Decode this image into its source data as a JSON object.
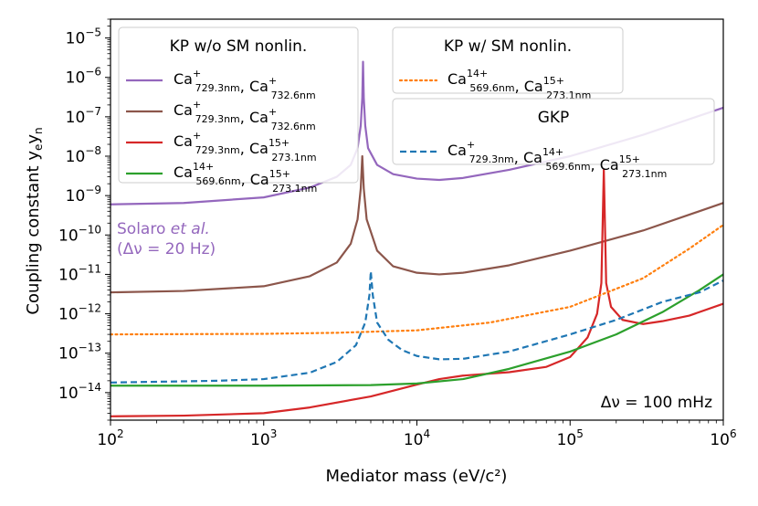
{
  "chart_data": {
    "type": "line",
    "xscale": "log",
    "yscale": "log",
    "xlim": [
      100,
      1000000
    ],
    "ylim": [
      2e-15,
      3e-05
    ],
    "xlabel": "Mediator mass (eV/c²)",
    "ylabel": "Coupling constant yₑyₙ",
    "xticks": [
      {
        "exp": 2,
        "base": "10",
        "sup": "2"
      },
      {
        "exp": 3,
        "base": "10",
        "sup": "3"
      },
      {
        "exp": 4,
        "base": "10",
        "sup": "4"
      },
      {
        "exp": 5,
        "base": "10",
        "sup": "5"
      },
      {
        "exp": 6,
        "base": "10",
        "sup": "6"
      }
    ],
    "yticks": [
      {
        "exp": -5,
        "base": "10",
        "sup": "−5"
      },
      {
        "exp": -6,
        "base": "10",
        "sup": "−6"
      },
      {
        "exp": -7,
        "base": "10",
        "sup": "−7"
      },
      {
        "exp": -8,
        "base": "10",
        "sup": "−8"
      },
      {
        "exp": -9,
        "base": "10",
        "sup": "−9"
      },
      {
        "exp": -10,
        "base": "10",
        "sup": "−10"
      },
      {
        "exp": -11,
        "base": "10",
        "sup": "−11"
      },
      {
        "exp": -12,
        "base": "10",
        "sup": "−12"
      },
      {
        "exp": -13,
        "base": "10",
        "sup": "−13"
      },
      {
        "exp": -14,
        "base": "10",
        "sup": "−14"
      }
    ],
    "series": [
      {
        "name": "purple",
        "color": "#9467bd",
        "dash": "solid",
        "points": [
          [
            100,
            6e-10
          ],
          [
            300,
            6.5e-10
          ],
          [
            1000,
            9e-10
          ],
          [
            2000,
            1.6e-09
          ],
          [
            3000,
            3e-09
          ],
          [
            3700,
            6e-09
          ],
          [
            4100,
            1.6e-08
          ],
          [
            4300,
            6e-08
          ],
          [
            4400,
            3e-07
          ],
          [
            4450,
            2.5e-06
          ],
          [
            4500,
            3e-07
          ],
          [
            4600,
            6e-08
          ],
          [
            4800,
            1.6e-08
          ],
          [
            5500,
            6e-09
          ],
          [
            7000,
            3.5e-09
          ],
          [
            10000,
            2.7e-09
          ],
          [
            14000,
            2.5e-09
          ],
          [
            20000,
            2.8e-09
          ],
          [
            40000,
            4.5e-09
          ],
          [
            100000,
            1e-08
          ],
          [
            300000,
            3.5e-08
          ],
          [
            1000000,
            1.7e-07
          ]
        ]
      },
      {
        "name": "brown",
        "color": "#8c564b",
        "dash": "solid",
        "points": [
          [
            100,
            3.5e-12
          ],
          [
            300,
            3.8e-12
          ],
          [
            1000,
            5e-12
          ],
          [
            2000,
            9e-12
          ],
          [
            3000,
            2e-11
          ],
          [
            3700,
            6e-11
          ],
          [
            4100,
            2.5e-10
          ],
          [
            4300,
            1.5e-09
          ],
          [
            4400,
            1e-08
          ],
          [
            4500,
            1.5e-09
          ],
          [
            4700,
            2.5e-10
          ],
          [
            5500,
            4e-11
          ],
          [
            7000,
            1.6e-11
          ],
          [
            10000,
            1.1e-11
          ],
          [
            14000,
            1e-11
          ],
          [
            20000,
            1.1e-11
          ],
          [
            40000,
            1.7e-11
          ],
          [
            100000,
            4e-11
          ],
          [
            300000,
            1.3e-10
          ],
          [
            1000000,
            6.5e-10
          ]
        ]
      },
      {
        "name": "red",
        "color": "#d62728",
        "dash": "solid",
        "points": [
          [
            100,
            2.5e-15
          ],
          [
            300,
            2.6e-15
          ],
          [
            1000,
            3e-15
          ],
          [
            2000,
            4.2e-15
          ],
          [
            5000,
            8e-15
          ],
          [
            10000,
            1.6e-14
          ],
          [
            14000,
            2.2e-14
          ],
          [
            20000,
            2.7e-14
          ],
          [
            40000,
            3.3e-14
          ],
          [
            70000,
            4.5e-14
          ],
          [
            100000,
            8e-14
          ],
          [
            130000,
            2.5e-13
          ],
          [
            150000,
            1e-12
          ],
          [
            160000,
            6e-12
          ],
          [
            166000,
            4.5e-09
          ],
          [
            172000,
            6e-12
          ],
          [
            185000,
            1.5e-12
          ],
          [
            220000,
            7e-13
          ],
          [
            300000,
            5.5e-13
          ],
          [
            400000,
            6.5e-13
          ],
          [
            600000,
            9e-13
          ],
          [
            1000000,
            1.8e-12
          ]
        ]
      },
      {
        "name": "green",
        "color": "#2ca02c",
        "dash": "solid",
        "points": [
          [
            100,
            1.5e-14
          ],
          [
            1000,
            1.5e-14
          ],
          [
            5000,
            1.55e-14
          ],
          [
            10000,
            1.7e-14
          ],
          [
            20000,
            2.2e-14
          ],
          [
            40000,
            4e-14
          ],
          [
            100000,
            1.1e-13
          ],
          [
            200000,
            3e-13
          ],
          [
            400000,
            1.1e-12
          ],
          [
            700000,
            4e-12
          ],
          [
            1000000,
            1e-11
          ]
        ]
      },
      {
        "name": "orange",
        "color": "#ff7f0e",
        "dash": "dotted",
        "points": [
          [
            100,
            3e-13
          ],
          [
            1000,
            3.1e-13
          ],
          [
            3000,
            3.3e-13
          ],
          [
            10000,
            3.8e-13
          ],
          [
            30000,
            6e-13
          ],
          [
            100000,
            1.5e-12
          ],
          [
            300000,
            8e-12
          ],
          [
            600000,
            4.5e-11
          ],
          [
            1000000,
            1.8e-10
          ]
        ]
      },
      {
        "name": "blue",
        "color": "#1f77b4",
        "dash": "dashed",
        "points": [
          [
            100,
            1.8e-14
          ],
          [
            500,
            2e-14
          ],
          [
            1000,
            2.2e-14
          ],
          [
            2000,
            3.2e-14
          ],
          [
            3000,
            6e-14
          ],
          [
            4000,
            1.6e-13
          ],
          [
            4600,
            6e-13
          ],
          [
            4900,
            3e-12
          ],
          [
            5000,
            1.2e-11
          ],
          [
            5150,
            3e-12
          ],
          [
            5500,
            6e-13
          ],
          [
            6500,
            2.2e-13
          ],
          [
            8000,
            1.2e-13
          ],
          [
            10000,
            8.5e-14
          ],
          [
            14000,
            7e-14
          ],
          [
            20000,
            7.2e-14
          ],
          [
            40000,
            1.1e-13
          ],
          [
            100000,
            3e-13
          ],
          [
            200000,
            7e-13
          ],
          [
            400000,
            2e-12
          ],
          [
            700000,
            3.5e-12
          ],
          [
            1000000,
            7e-12
          ]
        ]
      }
    ],
    "legend_left": {
      "title": "KP w/o SM nonlin.",
      "entries": [
        {
          "color": "#9467bd",
          "dash": "solid",
          "parts": [
            {
              "el": "Ca",
              "sup": "+",
              "sub": "729.3nm"
            },
            {
              "sep": ", "
            },
            {
              "el": "Ca",
              "sup": "+",
              "sub": "732.6nm"
            }
          ]
        },
        {
          "color": "#8c564b",
          "dash": "solid",
          "parts": [
            {
              "el": "Ca",
              "sup": "+",
              "sub": "729.3nm"
            },
            {
              "sep": ", "
            },
            {
              "el": "Ca",
              "sup": "+",
              "sub": "732.6nm"
            }
          ]
        },
        {
          "color": "#d62728",
          "dash": "solid",
          "parts": [
            {
              "el": "Ca",
              "sup": "+",
              "sub": "729.3nm"
            },
            {
              "sep": ", "
            },
            {
              "el": "Ca",
              "sup": "15+",
              "sub": "273.1nm"
            }
          ]
        },
        {
          "color": "#2ca02c",
          "dash": "solid",
          "parts": [
            {
              "el": "Ca",
              "sup": "14+",
              "sub": "569.6nm"
            },
            {
              "sep": ", "
            },
            {
              "el": "Ca",
              "sup": "15+",
              "sub": "273.1nm"
            }
          ]
        }
      ]
    },
    "legend_kp": {
      "title": "KP w/ SM nonlin.",
      "entries": [
        {
          "color": "#ff7f0e",
          "dash": "dotted",
          "parts": [
            {
              "el": "Ca",
              "sup": "14+",
              "sub": "569.6nm"
            },
            {
              "sep": ", "
            },
            {
              "el": "Ca",
              "sup": "15+",
              "sub": "273.1nm"
            }
          ]
        }
      ]
    },
    "legend_gkp": {
      "title": "GKP",
      "entries": [
        {
          "color": "#1f77b4",
          "dash": "dashed",
          "parts": [
            {
              "el": "Ca",
              "sup": "+",
              "sub": "729.3nm"
            },
            {
              "sep": ", "
            },
            {
              "el": "Ca",
              "sup": "14+",
              "sub": "569.6nm"
            },
            {
              "sep": ", "
            },
            {
              "el": "Ca",
              "sup": "15+",
              "sub": "273.1nm"
            }
          ]
        }
      ]
    },
    "annotations": {
      "solaro_line1": "Solaro ",
      "solaro_italic": "et al.",
      "solaro_line2": "(Δν = 20 Hz)",
      "solaro_color": "#9467bd",
      "delta_nu": "Δν = 100 mHz"
    }
  }
}
